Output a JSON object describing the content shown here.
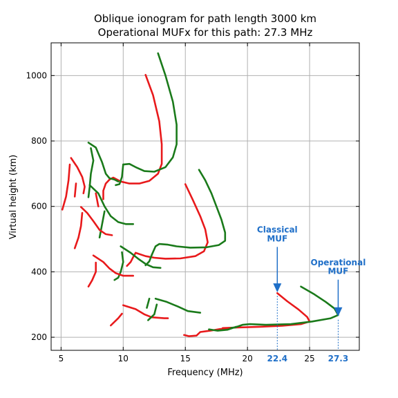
{
  "chart_data": {
    "type": "line",
    "title": "Oblique ionogram for path length 3000 km",
    "subtitle": "Operational MUFx for this path: 27.3 MHz",
    "xlabel": "Frequency (MHz)",
    "ylabel": "Virtual height (km)",
    "xlim": [
      4.2,
      29.0
    ],
    "ylim": [
      160,
      1100
    ],
    "xticks": [
      5,
      10,
      15,
      20,
      25
    ],
    "yticks": [
      200,
      400,
      600,
      800,
      1000
    ],
    "grid": true,
    "colors": {
      "red": "#e8191b",
      "green": "#1a7a1a",
      "annotation": "#1f6fc8"
    },
    "series": [
      {
        "color": "red",
        "points": [
          [
            11.8,
            1002
          ],
          [
            12.4,
            940
          ],
          [
            12.9,
            860
          ],
          [
            13.1,
            790
          ],
          [
            13.1,
            730
          ],
          [
            12.8,
            700
          ],
          [
            12.1,
            678
          ],
          [
            11.3,
            670
          ],
          [
            10.5,
            670
          ],
          [
            9.8,
            676
          ]
        ]
      },
      {
        "color": "red",
        "points": [
          [
            9.8,
            676
          ],
          [
            9.2,
            688
          ],
          [
            8.9,
            682
          ]
        ]
      },
      {
        "color": "red",
        "points": [
          [
            8.9,
            682
          ],
          [
            8.6,
            670
          ],
          [
            8.4,
            648
          ],
          [
            8.4,
            622
          ]
        ]
      },
      {
        "color": "green",
        "points": [
          [
            12.8,
            1068
          ],
          [
            13.4,
            1000
          ],
          [
            14.0,
            920
          ],
          [
            14.3,
            850
          ],
          [
            14.3,
            790
          ],
          [
            14.0,
            750
          ],
          [
            13.4,
            720
          ],
          [
            12.5,
            706
          ],
          [
            11.7,
            708
          ],
          [
            11.0,
            720
          ],
          [
            10.5,
            730
          ],
          [
            10.0,
            728
          ]
        ]
      },
      {
        "color": "green",
        "points": [
          [
            10.0,
            728
          ],
          [
            9.9,
            690
          ],
          [
            9.7,
            668
          ],
          [
            9.4,
            665
          ]
        ]
      },
      {
        "color": "green",
        "points": [
          [
            7.2,
            795
          ],
          [
            7.8,
            780
          ],
          [
            8.3,
            735
          ],
          [
            8.6,
            700
          ],
          [
            8.9,
            686
          ],
          [
            9.3,
            682
          ],
          [
            9.6,
            676
          ]
        ]
      },
      {
        "color": "green",
        "points": [
          [
            7.4,
            778
          ],
          [
            7.6,
            740
          ],
          [
            7.4,
            700
          ],
          [
            7.3,
            660
          ],
          [
            7.2,
            628
          ]
        ]
      },
      {
        "color": "green",
        "points": [
          [
            7.3,
            665
          ],
          [
            8.0,
            640
          ],
          [
            8.5,
            600
          ],
          [
            9.0,
            570
          ],
          [
            9.6,
            552
          ],
          [
            10.2,
            546
          ],
          [
            10.8,
            546
          ]
        ]
      },
      {
        "color": "green",
        "points": [
          [
            8.5,
            585
          ],
          [
            8.3,
            545
          ],
          [
            8.1,
            505
          ]
        ]
      },
      {
        "color": "red",
        "points": [
          [
            5.8,
            748
          ],
          [
            6.3,
            720
          ],
          [
            6.7,
            690
          ],
          [
            6.9,
            660
          ],
          [
            6.8,
            640
          ]
        ]
      },
      {
        "color": "red",
        "points": [
          [
            5.7,
            728
          ],
          [
            5.6,
            680
          ],
          [
            5.4,
            630
          ],
          [
            5.1,
            590
          ]
        ]
      },
      {
        "color": "red",
        "points": [
          [
            6.2,
            670
          ],
          [
            6.1,
            630
          ]
        ]
      },
      {
        "color": "red",
        "points": [
          [
            6.6,
            598
          ],
          [
            7.1,
            580
          ],
          [
            7.6,
            555
          ],
          [
            8.1,
            528
          ],
          [
            8.6,
            515
          ],
          [
            9.1,
            512
          ]
        ]
      },
      {
        "color": "red",
        "points": [
          [
            6.7,
            580
          ],
          [
            6.6,
            540
          ],
          [
            6.4,
            505
          ],
          [
            6.1,
            472
          ]
        ]
      },
      {
        "color": "red",
        "points": [
          [
            7.8,
            640
          ],
          [
            8.0,
            600
          ]
        ]
      },
      {
        "color": "red",
        "points": [
          [
            15.0,
            668
          ],
          [
            15.6,
            620
          ],
          [
            16.2,
            570
          ],
          [
            16.6,
            530
          ],
          [
            16.8,
            490
          ],
          [
            16.5,
            463
          ],
          [
            15.8,
            448
          ],
          [
            14.6,
            441
          ],
          [
            13.4,
            440
          ],
          [
            12.5,
            443
          ],
          [
            11.8,
            448
          ],
          [
            11.0,
            458
          ]
        ]
      },
      {
        "color": "red",
        "points": [
          [
            11.0,
            458
          ],
          [
            10.8,
            445
          ],
          [
            10.6,
            430
          ],
          [
            10.3,
            418
          ]
        ]
      },
      {
        "color": "green",
        "points": [
          [
            16.1,
            712
          ],
          [
            16.6,
            680
          ],
          [
            17.1,
            640
          ],
          [
            17.5,
            600
          ],
          [
            17.9,
            560
          ],
          [
            18.2,
            520
          ],
          [
            18.2,
            495
          ],
          [
            17.7,
            482
          ],
          [
            16.7,
            475
          ],
          [
            15.4,
            474
          ],
          [
            14.3,
            478
          ],
          [
            13.6,
            483
          ],
          [
            12.9,
            485
          ],
          [
            12.6,
            478
          ],
          [
            12.3,
            452
          ]
        ]
      },
      {
        "color": "green",
        "points": [
          [
            12.3,
            452
          ],
          [
            12.1,
            432
          ],
          [
            11.8,
            420
          ]
        ]
      },
      {
        "color": "green",
        "points": [
          [
            9.8,
            478
          ],
          [
            10.6,
            458
          ],
          [
            11.2,
            440
          ],
          [
            11.8,
            424
          ],
          [
            12.4,
            414
          ],
          [
            13.0,
            412
          ]
        ]
      },
      {
        "color": "green",
        "points": [
          [
            9.9,
            460
          ],
          [
            10.0,
            430
          ],
          [
            9.8,
            400
          ],
          [
            9.6,
            382
          ],
          [
            9.3,
            375
          ]
        ]
      },
      {
        "color": "red",
        "points": [
          [
            7.6,
            450
          ],
          [
            8.4,
            430
          ],
          [
            8.9,
            410
          ],
          [
            9.4,
            396
          ],
          [
            10.0,
            388
          ],
          [
            10.8,
            388
          ]
        ]
      },
      {
        "color": "red",
        "points": [
          [
            7.8,
            428
          ],
          [
            7.8,
            400
          ],
          [
            7.5,
            374
          ],
          [
            7.2,
            355
          ]
        ]
      },
      {
        "color": "red",
        "points": [
          [
            22.4,
            335
          ],
          [
            23.2,
            310
          ],
          [
            24.1,
            285
          ],
          [
            24.8,
            262
          ],
          [
            25.0,
            248
          ],
          [
            24.3,
            240
          ],
          [
            22.8,
            235
          ],
          [
            21.0,
            232
          ],
          [
            19.2,
            230
          ],
          [
            18.0,
            228
          ]
        ]
      },
      {
        "color": "green",
        "points": [
          [
            24.3,
            355
          ],
          [
            25.3,
            333
          ],
          [
            26.3,
            308
          ],
          [
            27.0,
            288
          ],
          [
            27.3,
            268
          ],
          [
            26.7,
            258
          ],
          [
            25.2,
            248
          ],
          [
            23.5,
            240
          ],
          [
            21.5,
            238
          ],
          [
            20.2,
            240
          ],
          [
            19.6,
            238
          ],
          [
            19.0,
            230
          ],
          [
            18.5,
            228
          ]
        ]
      },
      {
        "color": "red",
        "points": [
          [
            18.6,
            228
          ],
          [
            17.8,
            225
          ],
          [
            17.0,
            220
          ],
          [
            16.2,
            216
          ],
          [
            15.9,
            205
          ],
          [
            15.3,
            203
          ],
          [
            14.9,
            207
          ]
        ]
      },
      {
        "color": "green",
        "points": [
          [
            19.1,
            232
          ],
          [
            18.4,
            223
          ],
          [
            17.6,
            220
          ],
          [
            16.9,
            224
          ]
        ]
      },
      {
        "color": "red",
        "points": [
          [
            10.0,
            298
          ],
          [
            11.0,
            286
          ],
          [
            11.7,
            270
          ],
          [
            12.3,
            261
          ],
          [
            13.3,
            258
          ],
          [
            13.6,
            258
          ]
        ]
      },
      {
        "color": "red",
        "points": [
          [
            9.9,
            272
          ],
          [
            9.6,
            258
          ],
          [
            9.0,
            236
          ]
        ]
      },
      {
        "color": "green",
        "points": [
          [
            12.6,
            318
          ],
          [
            13.5,
            308
          ],
          [
            14.4,
            294
          ],
          [
            15.2,
            280
          ],
          [
            16.2,
            275
          ]
        ]
      },
      {
        "color": "green",
        "points": [
          [
            12.7,
            300
          ],
          [
            12.5,
            270
          ],
          [
            12.0,
            252
          ]
        ]
      },
      {
        "color": "green",
        "points": [
          [
            12.1,
            318
          ],
          [
            11.9,
            290
          ]
        ]
      }
    ],
    "annotations": [
      {
        "lines": [
          "Classical",
          "MUF"
        ],
        "x": 22.4,
        "y": 335,
        "label_y": [
          520,
          493
        ],
        "tick_label": "22.4"
      },
      {
        "lines": [
          "Operational",
          "MUF"
        ],
        "x": 27.3,
        "y": 262,
        "label_y": [
          420,
          393
        ],
        "tick_label": "27.3"
      }
    ]
  }
}
